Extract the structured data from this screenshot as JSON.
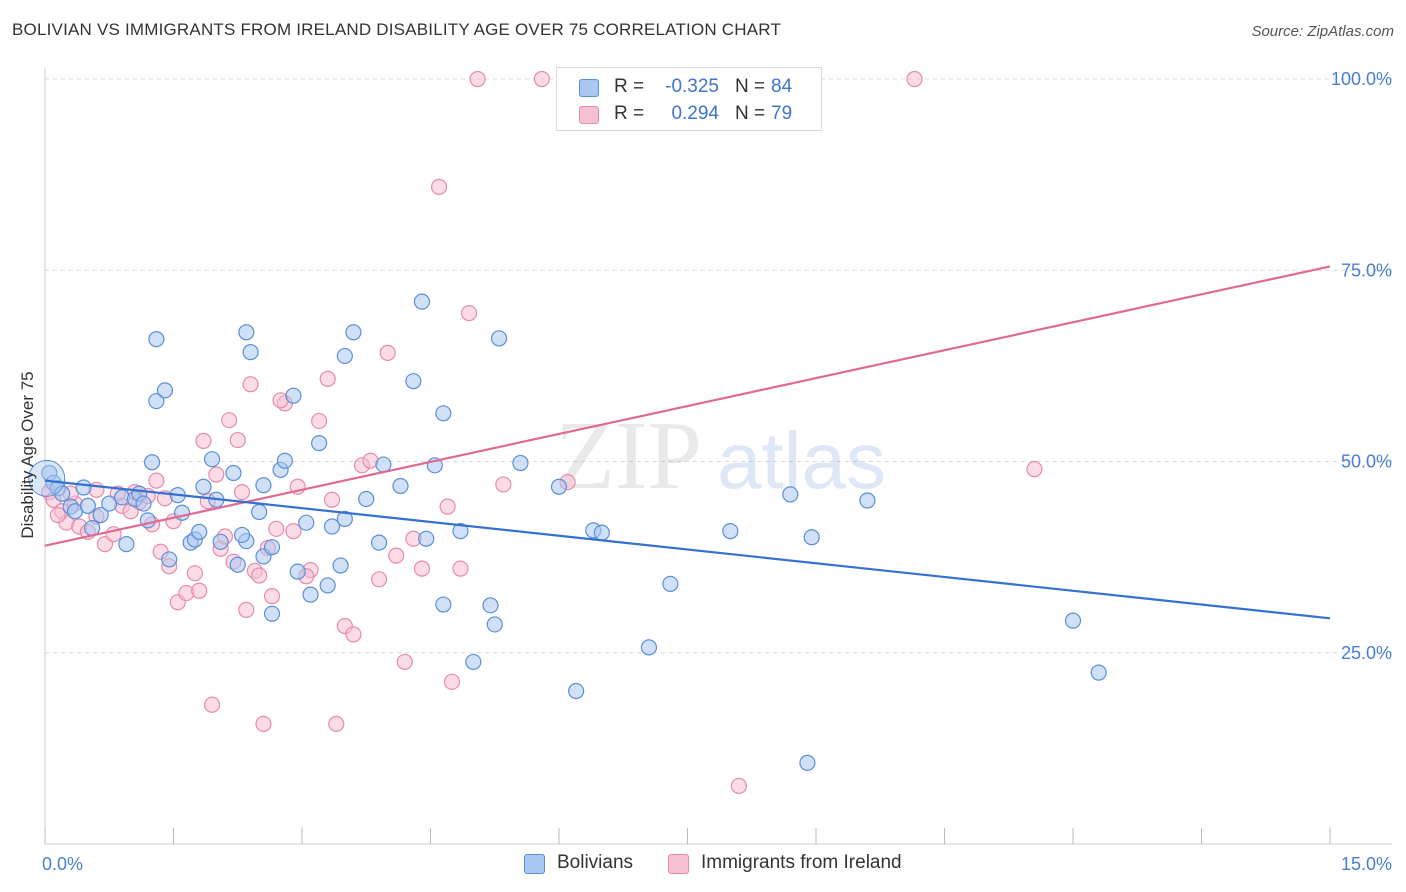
{
  "title": "BOLIVIAN VS IMMIGRANTS FROM IRELAND DISABILITY AGE OVER 75 CORRELATION CHART",
  "source": "Source: ZipAtlas.com",
  "watermark": {
    "zip": "ZIP",
    "atlas": "atlas"
  },
  "legend": {
    "rows": [
      {
        "r_label": "R =",
        "r_value": "-0.325",
        "n_label": "N =",
        "n_value": "84"
      },
      {
        "r_label": "R =",
        "r_value": "0.294",
        "n_label": "N =",
        "n_value": "79"
      }
    ]
  },
  "bottom_legend": [
    "Bolivians",
    "Immigrants from Ireland"
  ],
  "colors": {
    "blue_fill": "#a9c7f0",
    "blue_stroke": "#5a8fd8",
    "blue_line": "#3471d1",
    "pink_fill": "#f7c0d2",
    "pink_stroke": "#e88aab",
    "pink_line": "#e06a94",
    "tick_text": "#4a7fcf",
    "grid": "#d8d8d8"
  },
  "chart_data": {
    "type": "scatter",
    "title": "BOLIVIAN VS IMMIGRANTS FROM IRELAND DISABILITY AGE OVER 75 CORRELATION CHART",
    "xlabel": "",
    "ylabel": "Disability Age Over 75",
    "xlim": [
      0,
      15
    ],
    "ylim": [
      0,
      102
    ],
    "x_tick_labels": [
      "0.0%",
      "15.0%"
    ],
    "y_ticks": [
      25,
      50,
      75,
      100
    ],
    "y_tick_labels": [
      "25.0%",
      "50.0%",
      "75.0%",
      "100.0%"
    ],
    "grid": true,
    "legend_position": "top-center",
    "series": [
      {
        "name": "Bolivians",
        "r": -0.325,
        "n": 84,
        "trend": {
          "x": [
            0,
            15
          ],
          "y": [
            47.5,
            29.5
          ]
        },
        "points": [
          [
            0.05,
            48.5
          ],
          [
            0.1,
            47.2
          ],
          [
            0.15,
            46.5
          ],
          [
            0.2,
            45.8
          ],
          [
            0.3,
            44.1
          ],
          [
            0.35,
            43.5
          ],
          [
            0.45,
            46.6
          ],
          [
            0.5,
            44.2
          ],
          [
            0.55,
            41.3
          ],
          [
            0.65,
            43.0
          ],
          [
            0.75,
            44.5
          ],
          [
            0.9,
            45.3
          ],
          [
            0.95,
            39.2
          ],
          [
            1.05,
            45.1
          ],
          [
            1.1,
            45.8
          ],
          [
            1.2,
            42.3
          ],
          [
            1.3,
            57.9
          ],
          [
            1.25,
            49.9
          ],
          [
            1.4,
            59.3
          ],
          [
            1.45,
            37.2
          ],
          [
            1.55,
            45.6
          ],
          [
            1.6,
            43.3
          ],
          [
            1.7,
            39.4
          ],
          [
            1.75,
            39.8
          ],
          [
            1.8,
            40.8
          ],
          [
            1.85,
            46.7
          ],
          [
            2.0,
            45.0
          ],
          [
            2.05,
            39.5
          ],
          [
            1.95,
            50.3
          ],
          [
            2.2,
            48.5
          ],
          [
            2.25,
            36.5
          ],
          [
            2.35,
            39.6
          ],
          [
            2.5,
            43.4
          ],
          [
            2.55,
            46.9
          ],
          [
            2.3,
            40.4
          ],
          [
            2.35,
            66.9
          ],
          [
            2.4,
            64.3
          ],
          [
            2.55,
            37.6
          ],
          [
            2.65,
            30.1
          ],
          [
            2.75,
            48.9
          ],
          [
            2.8,
            50.1
          ],
          [
            2.65,
            38.8
          ],
          [
            2.9,
            58.6
          ],
          [
            2.95,
            35.6
          ],
          [
            3.05,
            42.0
          ],
          [
            3.1,
            32.6
          ],
          [
            3.2,
            52.4
          ],
          [
            3.3,
            33.8
          ],
          [
            3.35,
            41.5
          ],
          [
            3.5,
            42.5
          ],
          [
            3.45,
            36.4
          ],
          [
            3.5,
            63.8
          ],
          [
            3.6,
            66.9
          ],
          [
            3.75,
            45.1
          ],
          [
            3.9,
            39.4
          ],
          [
            3.95,
            49.6
          ],
          [
            4.15,
            46.8
          ],
          [
            4.3,
            60.5
          ],
          [
            4.4,
            70.9
          ],
          [
            4.45,
            39.9
          ],
          [
            4.55,
            49.5
          ],
          [
            4.65,
            31.3
          ],
          [
            4.65,
            56.3
          ],
          [
            4.85,
            40.9
          ],
          [
            5.0,
            23.8
          ],
          [
            5.2,
            31.2
          ],
          [
            5.25,
            28.7
          ],
          [
            5.3,
            66.1
          ],
          [
            5.55,
            49.8
          ],
          [
            6.0,
            46.7
          ],
          [
            6.4,
            41.0
          ],
          [
            6.5,
            40.7
          ],
          [
            6.2,
            20.0
          ],
          [
            7.05,
            25.7
          ],
          [
            7.3,
            34.0
          ],
          [
            8.0,
            40.9
          ],
          [
            8.7,
            45.7
          ],
          [
            8.9,
            10.6
          ],
          [
            8.95,
            40.1
          ],
          [
            9.6,
            44.9
          ],
          [
            12.0,
            29.2
          ],
          [
            12.3,
            22.4
          ],
          [
            1.3,
            66.0
          ],
          [
            1.15,
            44.5
          ]
        ]
      },
      {
        "name": "Immigrants from Ireland",
        "r": 0.294,
        "n": 79,
        "trend": {
          "x": [
            0,
            15
          ],
          "y": [
            39.0,
            75.5
          ]
        },
        "points": [
          [
            0.05,
            46.0
          ],
          [
            0.1,
            45.0
          ],
          [
            0.2,
            43.5
          ],
          [
            0.25,
            42.0
          ],
          [
            0.35,
            44.5
          ],
          [
            0.4,
            41.5
          ],
          [
            0.5,
            40.8
          ],
          [
            0.6,
            42.8
          ],
          [
            0.7,
            39.2
          ],
          [
            0.8,
            40.5
          ],
          [
            0.85,
            45.8
          ],
          [
            0.9,
            44.2
          ],
          [
            1.0,
            43.5
          ],
          [
            1.05,
            46.0
          ],
          [
            1.1,
            44.7
          ],
          [
            1.2,
            45.5
          ],
          [
            1.25,
            41.8
          ],
          [
            1.3,
            47.5
          ],
          [
            1.35,
            38.2
          ],
          [
            1.45,
            36.3
          ],
          [
            1.5,
            42.2
          ],
          [
            1.55,
            31.6
          ],
          [
            1.65,
            32.8
          ],
          [
            1.75,
            35.4
          ],
          [
            1.8,
            33.1
          ],
          [
            1.85,
            52.7
          ],
          [
            1.9,
            44.8
          ],
          [
            1.95,
            18.2
          ],
          [
            2.0,
            48.3
          ],
          [
            2.05,
            38.6
          ],
          [
            2.1,
            40.2
          ],
          [
            2.15,
            55.4
          ],
          [
            2.2,
            36.9
          ],
          [
            2.25,
            52.8
          ],
          [
            2.3,
            46.0
          ],
          [
            2.35,
            30.6
          ],
          [
            2.4,
            60.1
          ],
          [
            2.45,
            35.7
          ],
          [
            2.5,
            35.1
          ],
          [
            2.55,
            15.7
          ],
          [
            2.6,
            38.7
          ],
          [
            2.65,
            32.4
          ],
          [
            2.7,
            41.2
          ],
          [
            2.8,
            57.6
          ],
          [
            2.9,
            40.9
          ],
          [
            2.95,
            46.7
          ],
          [
            3.1,
            35.8
          ],
          [
            3.2,
            55.3
          ],
          [
            3.3,
            60.8
          ],
          [
            3.35,
            45.0
          ],
          [
            3.4,
            15.7
          ],
          [
            3.5,
            28.5
          ],
          [
            3.6,
            27.4
          ],
          [
            3.7,
            49.5
          ],
          [
            3.8,
            50.1
          ],
          [
            3.9,
            34.6
          ],
          [
            4.0,
            64.2
          ],
          [
            4.1,
            37.7
          ],
          [
            4.2,
            23.8
          ],
          [
            4.3,
            39.9
          ],
          [
            4.4,
            36.0
          ],
          [
            4.6,
            85.9
          ],
          [
            4.7,
            44.1
          ],
          [
            4.75,
            21.2
          ],
          [
            4.85,
            36.0
          ],
          [
            4.95,
            69.4
          ],
          [
            5.05,
            100.0
          ],
          [
            5.35,
            47.0
          ],
          [
            5.8,
            100.0
          ],
          [
            6.1,
            47.3
          ],
          [
            8.1,
            7.6
          ],
          [
            10.15,
            100.0
          ],
          [
            11.55,
            49.0
          ],
          [
            0.15,
            43.0
          ],
          [
            0.6,
            46.3
          ],
          [
            1.4,
            45.2
          ],
          [
            2.75,
            58.0
          ],
          [
            3.05,
            35.0
          ],
          [
            0.3,
            45.8
          ]
        ]
      }
    ]
  }
}
